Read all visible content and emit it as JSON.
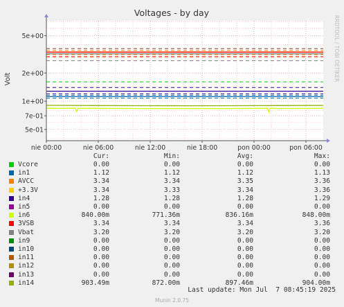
{
  "chart_data": {
    "type": "line",
    "title": "Voltages - by day",
    "ylabel": "Volt",
    "y_scale": "log",
    "ylim": [
      0.38,
      7.2
    ],
    "y_ticks": [
      {
        "value": 5,
        "label": "5e+00"
      },
      {
        "value": 2,
        "label": "2e+00"
      },
      {
        "value": 1,
        "label": "1e+00"
      },
      {
        "value": 0.7,
        "label": "7e-01"
      },
      {
        "value": 0.5,
        "label": "5e-01"
      }
    ],
    "x_ticks": [
      "nie 00:00",
      "nie 06:00",
      "nie 12:00",
      "nie 18:00",
      "pon 00:00",
      "pon 06:00"
    ],
    "x_range_hours": [
      0,
      32
    ],
    "grid": true,
    "side_label": "RRDTOOL / TOBI OETIKER",
    "series": [
      {
        "name": "Vcore",
        "color": "#00cc00",
        "values": [
          0.0,
          0.0,
          0.0,
          0.0,
          0.0,
          0.0,
          0.0
        ],
        "limits": [
          0.0,
          0.0
        ]
      },
      {
        "name": "in1",
        "color": "#0066b3",
        "values": [
          1.12,
          1.12,
          1.12,
          1.12,
          1.12,
          1.12,
          1.12
        ],
        "limits": [
          1.08,
          1.16
        ]
      },
      {
        "name": "AVCC",
        "color": "#ff8000",
        "values": [
          3.34,
          3.35,
          3.34,
          3.35,
          3.34,
          3.35,
          3.34
        ],
        "limits": [
          3.14,
          3.47
        ]
      },
      {
        "name": "+3.3V",
        "color": "#ffcc00",
        "values": [
          3.34,
          3.34,
          3.33,
          3.34,
          3.34,
          3.34,
          3.34
        ],
        "limits": [
          2.98,
          3.63
        ]
      },
      {
        "name": "in4",
        "color": "#330099",
        "values": [
          1.28,
          1.28,
          1.28,
          1.28,
          1.28,
          1.28,
          1.28
        ],
        "limits": [
          1.2,
          1.4
        ]
      },
      {
        "name": "in5",
        "color": "#990099",
        "values": [
          0.0,
          0.0,
          0.0,
          0.0,
          0.0,
          0.0,
          0.0
        ],
        "limits": [
          0.0,
          0.0
        ]
      },
      {
        "name": "in6",
        "color": "#ccff00",
        "values": [
          0.84,
          0.84,
          0.836,
          0.836,
          0.836,
          0.836,
          0.84
        ],
        "limits": [
          0.0,
          0.0
        ]
      },
      {
        "name": "3VSB",
        "color": "#ff0000",
        "values": [
          3.34,
          3.34,
          3.34,
          3.34,
          3.34,
          3.34,
          3.34
        ],
        "limits": [
          2.98,
          3.63
        ]
      },
      {
        "name": "Vbat",
        "color": "#808080",
        "values": [
          3.2,
          3.2,
          3.2,
          3.2,
          3.2,
          3.2,
          3.2
        ],
        "limits": [
          2.7,
          3.63
        ]
      },
      {
        "name": "in9",
        "color": "#008f00",
        "values": [
          0.0,
          0.0,
          0.0,
          0.0,
          0.0,
          0.0,
          0.0
        ],
        "limits": [
          0.0,
          0.0
        ]
      },
      {
        "name": "in10",
        "color": "#00487d",
        "values": [
          0.0,
          0.0,
          0.0,
          0.0,
          0.0,
          0.0,
          0.0
        ],
        "limits": [
          0.0,
          0.0
        ]
      },
      {
        "name": "in11",
        "color": "#b35a00",
        "values": [
          0.0,
          0.0,
          0.0,
          0.0,
          0.0,
          0.0,
          0.0
        ],
        "limits": [
          0.0,
          0.0
        ]
      },
      {
        "name": "in12",
        "color": "#b38f00",
        "values": [
          0.0,
          0.0,
          0.0,
          0.0,
          0.0,
          0.0,
          0.0
        ],
        "limits": [
          0.0,
          0.0
        ]
      },
      {
        "name": "in13",
        "color": "#6b006b",
        "values": [
          0.0,
          0.0,
          0.0,
          0.0,
          0.0,
          0.0,
          0.0
        ],
        "limits": [
          0.0,
          0.0
        ]
      },
      {
        "name": "in14",
        "color": "#8fb300",
        "values": [
          0.904,
          0.9,
          0.897,
          0.895,
          0.897,
          0.9,
          0.903
        ],
        "limits": [
          0.0,
          0.0
        ]
      }
    ],
    "extra_thresholds": [
      {
        "value": 1.61,
        "color": "#00cc00"
      },
      {
        "value": 0.38,
        "color": "#00cc00"
      }
    ],
    "dips": [
      {
        "series": "in6",
        "hour": 3.5,
        "value": 0.78
      },
      {
        "series": "in6",
        "hour": 25.7,
        "value": 0.77
      }
    ]
  },
  "legend": {
    "headers": {
      "cur": "Cur:",
      "min": "Min:",
      "avg": "Avg:",
      "max": "Max:"
    },
    "rows": [
      {
        "name": "Vcore",
        "color": "#00cc00",
        "cur": "0.00",
        "min": "0.00",
        "avg": "0.00",
        "max": "0.00"
      },
      {
        "name": "in1",
        "color": "#0066b3",
        "cur": "1.12",
        "min": "1.12",
        "avg": "1.12",
        "max": "1.13"
      },
      {
        "name": "AVCC",
        "color": "#ff8000",
        "cur": "3.34",
        "min": "3.34",
        "avg": "3.35",
        "max": "3.36"
      },
      {
        "name": "+3.3V",
        "color": "#ffcc00",
        "cur": "3.34",
        "min": "3.33",
        "avg": "3.34",
        "max": "3.36"
      },
      {
        "name": "in4",
        "color": "#330099",
        "cur": "1.28",
        "min": "1.28",
        "avg": "1.28",
        "max": "1.29"
      },
      {
        "name": "in5",
        "color": "#990099",
        "cur": "0.00",
        "min": "0.00",
        "avg": "0.00",
        "max": "0.00"
      },
      {
        "name": "in6",
        "color": "#ccff00",
        "cur": "840.00m",
        "min": "771.36m",
        "avg": "836.16m",
        "max": "848.00m"
      },
      {
        "name": "3VSB",
        "color": "#ff0000",
        "cur": "3.34",
        "min": "3.34",
        "avg": "3.34",
        "max": "3.36"
      },
      {
        "name": "Vbat",
        "color": "#808080",
        "cur": "3.20",
        "min": "3.20",
        "avg": "3.20",
        "max": "3.20"
      },
      {
        "name": "in9",
        "color": "#008f00",
        "cur": "0.00",
        "min": "0.00",
        "avg": "0.00",
        "max": "0.00"
      },
      {
        "name": "in10",
        "color": "#00487d",
        "cur": "0.00",
        "min": "0.00",
        "avg": "0.00",
        "max": "0.00"
      },
      {
        "name": "in11",
        "color": "#b35a00",
        "cur": "0.00",
        "min": "0.00",
        "avg": "0.00",
        "max": "0.00"
      },
      {
        "name": "in12",
        "color": "#b38f00",
        "cur": "0.00",
        "min": "0.00",
        "avg": "0.00",
        "max": "0.00"
      },
      {
        "name": "in13",
        "color": "#6b006b",
        "cur": "0.00",
        "min": "0.00",
        "avg": "0.00",
        "max": "0.00"
      },
      {
        "name": "in14",
        "color": "#8fb300",
        "cur": "903.49m",
        "min": "872.00m",
        "avg": "897.46m",
        "max": "904.00m"
      }
    ]
  },
  "footer": {
    "last_update": "Last update: Mon Jul  7 08:45:19 2025",
    "munin": "Munin 2.0.75"
  },
  "colors": {
    "background": "#f0f0f0",
    "plot_background": "#ffffff",
    "minor_grid": "#ff9999",
    "major_grid": "#cc9999"
  }
}
